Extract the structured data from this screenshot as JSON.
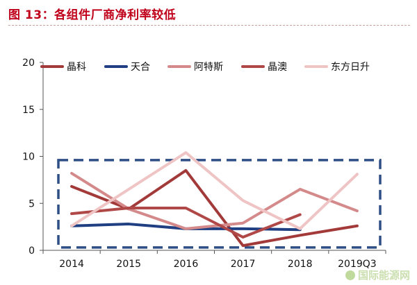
{
  "header": {
    "title": "图 13：各组件厂商净利率较低"
  },
  "watermark": "国际能源网",
  "chart_data": {
    "type": "line",
    "title": "图 13：各组件厂商净利率较低",
    "xlabel": "",
    "ylabel": "",
    "ylim": [
      0,
      20
    ],
    "yticks": [
      0,
      5,
      10,
      15,
      20
    ],
    "grid": false,
    "legend_position": "top",
    "categories": [
      "2014",
      "2015",
      "2016",
      "2017",
      "2018",
      "2019Q3"
    ],
    "series": [
      {
        "name": "晶科",
        "color": "#a33a3a",
        "values": [
          6.8,
          4.4,
          8.5,
          0.5,
          1.6,
          2.6
        ]
      },
      {
        "name": "天合",
        "color": "#1f3f82",
        "values": [
          2.6,
          2.8,
          2.3,
          2.3,
          2.2,
          null
        ]
      },
      {
        "name": "阿特斯",
        "color": "#d48a8a",
        "values": [
          8.2,
          4.4,
          2.3,
          2.9,
          6.5,
          4.2
        ]
      },
      {
        "name": "晶澳",
        "color": "#b04848",
        "values": [
          3.9,
          4.5,
          4.5,
          1.4,
          3.8,
          null
        ]
      },
      {
        "name": "东方日升",
        "color": "#efc4c4",
        "values": [
          2.6,
          6.5,
          10.4,
          5.3,
          2.3,
          8.1
        ]
      }
    ],
    "highlight_box": {
      "style": "dashed",
      "color": "#2e4f86"
    }
  }
}
